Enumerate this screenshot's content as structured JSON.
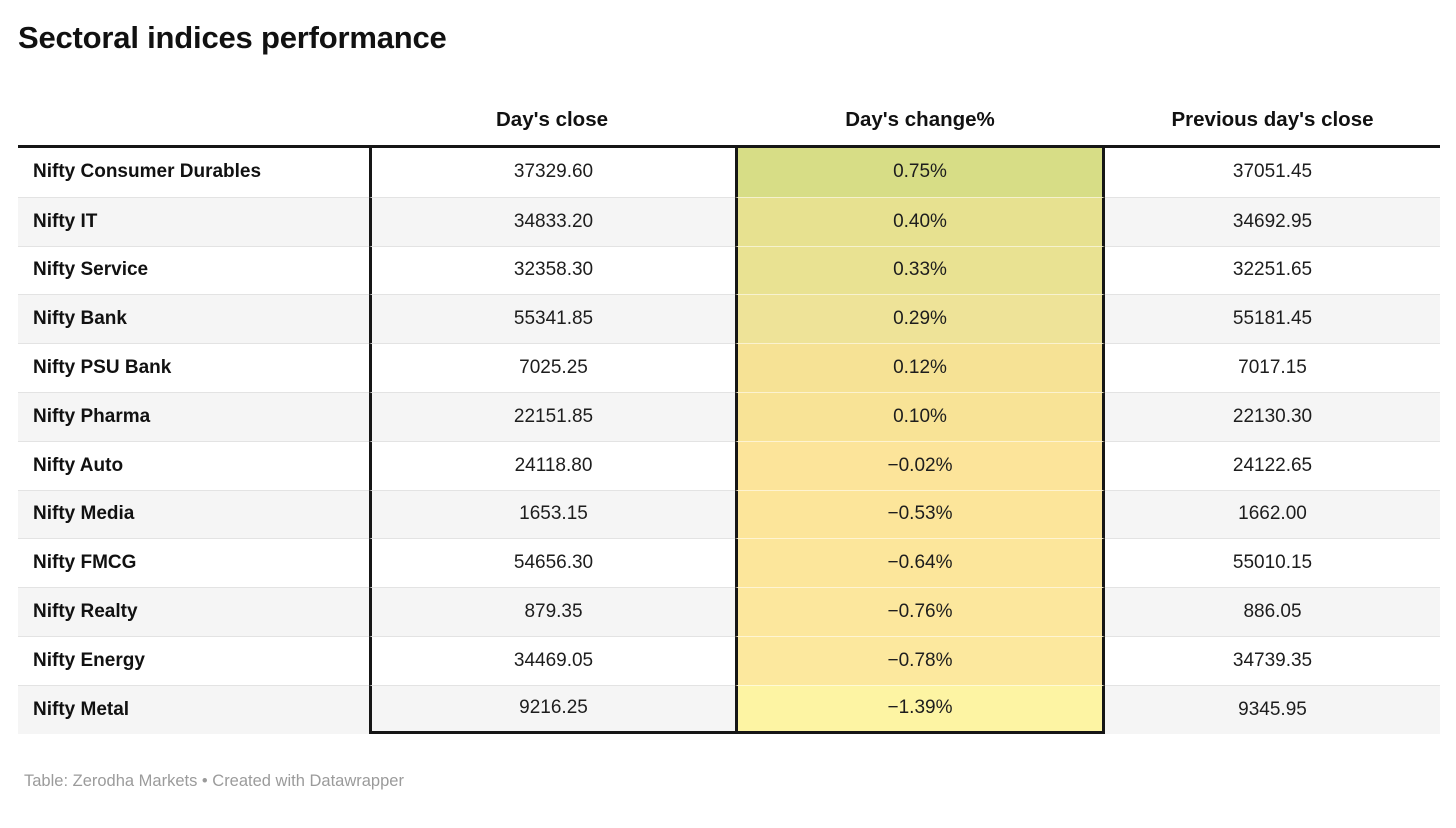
{
  "title": "Sectoral indices performance",
  "table": {
    "headers": [
      {
        "label": ""
      },
      {
        "label": "Day's close"
      },
      {
        "label": "Day's change%"
      },
      {
        "label": "Previous day's close"
      }
    ],
    "rows": [
      {
        "label": "Nifty Consumer Durables",
        "close": "37329.60",
        "change": "0.75%",
        "prev": "37051.45",
        "change_bg": "#d7dd86"
      },
      {
        "label": "Nifty IT",
        "close": "34833.20",
        "change": "0.40%",
        "prev": "34692.95",
        "change_bg": "#e7e190"
      },
      {
        "label": "Nifty Service",
        "close": "32358.30",
        "change": "0.33%",
        "prev": "32251.65",
        "change_bg": "#e9e292"
      },
      {
        "label": "Nifty Bank",
        "close": "55341.85",
        "change": "0.29%",
        "prev": "55181.45",
        "change_bg": "#eee398"
      },
      {
        "label": "Nifty PSU Bank",
        "close": "7025.25",
        "change": "0.12%",
        "prev": "7017.15",
        "change_bg": "#f6e295"
      },
      {
        "label": "Nifty Pharma",
        "close": "22151.85",
        "change": "0.10%",
        "prev": "22130.30",
        "change_bg": "#f8e396"
      },
      {
        "label": "Nifty Auto",
        "close": "24118.80",
        "change": "−0.02%",
        "prev": "24122.65",
        "change_bg": "#fce49a"
      },
      {
        "label": "Nifty Media",
        "close": "1653.15",
        "change": "−0.53%",
        "prev": "1662.00",
        "change_bg": "#fce59a"
      },
      {
        "label": "Nifty FMCG",
        "close": "54656.30",
        "change": "−0.64%",
        "prev": "55010.15",
        "change_bg": "#fce69b"
      },
      {
        "label": "Nifty Realty",
        "close": "879.35",
        "change": "−0.76%",
        "prev": "886.05",
        "change_bg": "#fce79d"
      },
      {
        "label": "Nifty Energy",
        "close": "34469.05",
        "change": "−0.78%",
        "prev": "34739.35",
        "change_bg": "#fce89e"
      },
      {
        "label": "Nifty Metal",
        "close": "9216.25",
        "change": "−1.39%",
        "prev": "9345.95",
        "change_bg": "#fdf4a3"
      }
    ]
  },
  "footer": {
    "text": "Table: Zerodha Markets • Created with Datawrapper"
  },
  "colors": {
    "heavy_rule": "#161616",
    "stripe": "#f5f5f5",
    "row_divider": "#e3e3e3",
    "footer_text": "#9b9b9b"
  }
}
